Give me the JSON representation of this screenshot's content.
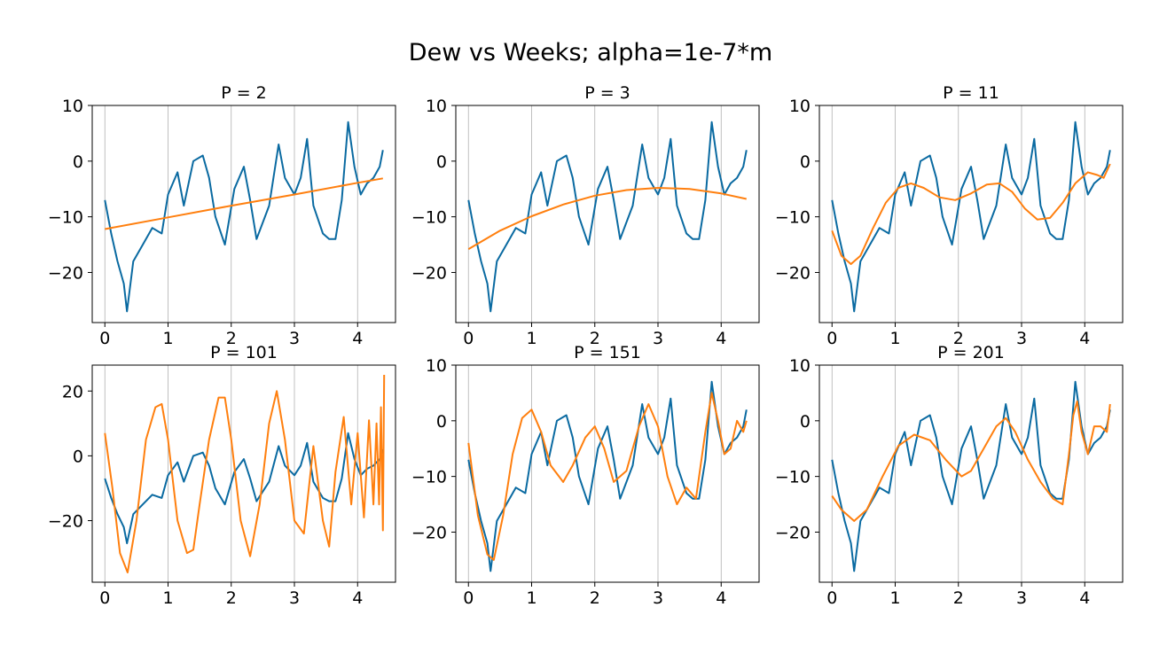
{
  "figure": {
    "title": "Dew vs Weeks; alpha=1e-7*m"
  },
  "colors": {
    "data": "#0a6aa1",
    "fit": "#ff7f0e",
    "grid": "#b0b0b0",
    "axes": "#000000"
  },
  "chart_data": [
    {
      "type": "line",
      "title": "P = 2",
      "xlim": [
        -0.2,
        4.6
      ],
      "ylim": [
        -29,
        10
      ],
      "xticks": [
        0,
        1,
        2,
        3,
        4
      ],
      "yticks": [
        -20,
        -10,
        0,
        10
      ],
      "ytick_labels": [
        "−20",
        "−10",
        "0",
        "10"
      ],
      "grid": "vertical",
      "series": [
        {
          "role": "data",
          "x": [
            0,
            0.1,
            0.2,
            0.3,
            0.35,
            0.45,
            0.6,
            0.75,
            0.9,
            1.0,
            1.15,
            1.25,
            1.4,
            1.55,
            1.65,
            1.75,
            1.9,
            2.05,
            2.2,
            2.3,
            2.4,
            2.6,
            2.75,
            2.85,
            3.0,
            3.1,
            3.2,
            3.3,
            3.45,
            3.55,
            3.65,
            3.75,
            3.85,
            3.95,
            4.05,
            4.15,
            4.25,
            4.35,
            4.4
          ],
          "y": [
            -7,
            -13,
            -18,
            -22,
            -27,
            -18,
            -15,
            -12,
            -13,
            -6,
            -2,
            -8,
            0,
            1,
            -3,
            -10,
            -15,
            -5,
            -1,
            -7,
            -14,
            -8,
            3,
            -3,
            -6,
            -3,
            4,
            -8,
            -13,
            -14,
            -14,
            -7,
            7,
            -1,
            -6,
            -4,
            -3,
            -1,
            2
          ]
        },
        {
          "role": "fit",
          "x": [
            0,
            1,
            2,
            3,
            4,
            4.4
          ],
          "y": [
            -12.2,
            -10.1,
            -8.0,
            -6.0,
            -3.9,
            -3.1
          ]
        }
      ]
    },
    {
      "type": "line",
      "title": "P = 3",
      "xlim": [
        -0.2,
        4.6
      ],
      "ylim": [
        -29,
        10
      ],
      "xticks": [
        0,
        1,
        2,
        3,
        4
      ],
      "yticks": [
        -20,
        -10,
        0,
        10
      ],
      "ytick_labels": [
        "−20",
        "−10",
        "0",
        "10"
      ],
      "grid": "vertical",
      "series": [
        {
          "role": "data",
          "x": [
            0,
            0.1,
            0.2,
            0.3,
            0.35,
            0.45,
            0.6,
            0.75,
            0.9,
            1.0,
            1.15,
            1.25,
            1.4,
            1.55,
            1.65,
            1.75,
            1.9,
            2.05,
            2.2,
            2.3,
            2.4,
            2.6,
            2.75,
            2.85,
            3.0,
            3.1,
            3.2,
            3.3,
            3.45,
            3.55,
            3.65,
            3.75,
            3.85,
            3.95,
            4.05,
            4.15,
            4.25,
            4.35,
            4.4
          ],
          "y": [
            -7,
            -13,
            -18,
            -22,
            -27,
            -18,
            -15,
            -12,
            -13,
            -6,
            -2,
            -8,
            0,
            1,
            -3,
            -10,
            -15,
            -5,
            -1,
            -7,
            -14,
            -8,
            3,
            -3,
            -6,
            -3,
            4,
            -8,
            -13,
            -14,
            -14,
            -7,
            7,
            -1,
            -6,
            -4,
            -3,
            -1,
            2
          ]
        },
        {
          "role": "fit",
          "x": [
            0,
            0.5,
            1,
            1.5,
            2,
            2.5,
            3,
            3.5,
            4,
            4.4
          ],
          "y": [
            -15.8,
            -12.5,
            -9.9,
            -7.8,
            -6.2,
            -5.2,
            -4.8,
            -5.0,
            -5.8,
            -6.8
          ]
        }
      ]
    },
    {
      "type": "line",
      "title": "P = 11",
      "xlim": [
        -0.2,
        4.6
      ],
      "ylim": [
        -29,
        10
      ],
      "xticks": [
        0,
        1,
        2,
        3,
        4
      ],
      "yticks": [
        -20,
        -10,
        0,
        10
      ],
      "ytick_labels": [
        "−20",
        "−10",
        "0",
        "10"
      ],
      "grid": "vertical",
      "series": [
        {
          "role": "data",
          "x": [
            0,
            0.1,
            0.2,
            0.3,
            0.35,
            0.45,
            0.6,
            0.75,
            0.9,
            1.0,
            1.15,
            1.25,
            1.4,
            1.55,
            1.65,
            1.75,
            1.9,
            2.05,
            2.2,
            2.3,
            2.4,
            2.6,
            2.75,
            2.85,
            3.0,
            3.1,
            3.2,
            3.3,
            3.45,
            3.55,
            3.65,
            3.75,
            3.85,
            3.95,
            4.05,
            4.15,
            4.25,
            4.35,
            4.4
          ],
          "y": [
            -7,
            -13,
            -18,
            -22,
            -27,
            -18,
            -15,
            -12,
            -13,
            -6,
            -2,
            -8,
            0,
            1,
            -3,
            -10,
            -15,
            -5,
            -1,
            -7,
            -14,
            -8,
            3,
            -3,
            -6,
            -3,
            4,
            -8,
            -13,
            -14,
            -14,
            -7,
            7,
            -1,
            -6,
            -4,
            -3,
            -1,
            2
          ]
        },
        {
          "role": "fit",
          "x": [
            0,
            0.15,
            0.3,
            0.45,
            0.65,
            0.85,
            1.05,
            1.25,
            1.45,
            1.7,
            1.95,
            2.2,
            2.45,
            2.65,
            2.85,
            3.05,
            3.25,
            3.45,
            3.65,
            3.85,
            4.05,
            4.2,
            4.3,
            4.4
          ],
          "y": [
            -12.5,
            -17,
            -18.5,
            -17,
            -12,
            -7.5,
            -4.8,
            -4.0,
            -4.8,
            -6.5,
            -7.0,
            -5.8,
            -4.2,
            -4.0,
            -5.5,
            -8.5,
            -10.5,
            -10.2,
            -7.5,
            -4.0,
            -2.0,
            -2.5,
            -3.0,
            -0.5
          ]
        }
      ]
    },
    {
      "type": "line",
      "title": "P = 101",
      "xlim": [
        -0.2,
        4.6
      ],
      "ylim": [
        -39,
        28
      ],
      "xticks": [
        0,
        1,
        2,
        3,
        4
      ],
      "yticks": [
        -20,
        0,
        20
      ],
      "ytick_labels": [
        "−20",
        "0",
        "20"
      ],
      "grid": "vertical",
      "series": [
        {
          "role": "data",
          "x": [
            0,
            0.1,
            0.2,
            0.3,
            0.35,
            0.45,
            0.6,
            0.75,
            0.9,
            1.0,
            1.15,
            1.25,
            1.4,
            1.55,
            1.65,
            1.75,
            1.9,
            2.05,
            2.2,
            2.3,
            2.4,
            2.6,
            2.75,
            2.85,
            3.0,
            3.1,
            3.2,
            3.3,
            3.45,
            3.55,
            3.65,
            3.75,
            3.85,
            3.95,
            4.05,
            4.15,
            4.25,
            4.35,
            4.4
          ],
          "y": [
            -7,
            -13,
            -18,
            -22,
            -27,
            -18,
            -15,
            -12,
            -13,
            -6,
            -2,
            -8,
            0,
            1,
            -3,
            -10,
            -15,
            -5,
            -1,
            -7,
            -14,
            -8,
            3,
            -3,
            -6,
            -3,
            4,
            -8,
            -13,
            -14,
            -14,
            -7,
            7,
            -1,
            -6,
            -4,
            -3,
            -1,
            2
          ]
        },
        {
          "role": "fit",
          "x": [
            0,
            0.12,
            0.24,
            0.36,
            0.5,
            0.65,
            0.8,
            0.9,
            1.0,
            1.15,
            1.3,
            1.4,
            1.5,
            1.65,
            1.8,
            1.9,
            2.0,
            2.15,
            2.3,
            2.45,
            2.6,
            2.72,
            2.85,
            3.0,
            3.15,
            3.3,
            3.45,
            3.55,
            3.65,
            3.78,
            3.9,
            4.0,
            4.1,
            4.18,
            4.25,
            4.3,
            4.34,
            4.37,
            4.4,
            4.42
          ],
          "y": [
            7,
            -10,
            -30,
            -36,
            -20,
            5,
            15,
            16,
            5,
            -20,
            -30,
            -29,
            -15,
            5,
            18,
            18,
            5,
            -20,
            -31,
            -15,
            10,
            20,
            5,
            -20,
            -24,
            3,
            -20,
            -28,
            -5,
            12,
            -15,
            7,
            -19,
            11,
            -15,
            10,
            -15,
            15,
            -23,
            25
          ]
        }
      ]
    },
    {
      "type": "line",
      "title": "P = 151",
      "xlim": [
        -0.2,
        4.6
      ],
      "ylim": [
        -29,
        10
      ],
      "xticks": [
        0,
        1,
        2,
        3,
        4
      ],
      "yticks": [
        -20,
        -10,
        0,
        10
      ],
      "ytick_labels": [
        "−20",
        "−10",
        "0",
        "10"
      ],
      "grid": "vertical",
      "series": [
        {
          "role": "data",
          "x": [
            0,
            0.1,
            0.2,
            0.3,
            0.35,
            0.45,
            0.6,
            0.75,
            0.9,
            1.0,
            1.15,
            1.25,
            1.4,
            1.55,
            1.65,
            1.75,
            1.9,
            2.05,
            2.2,
            2.3,
            2.4,
            2.6,
            2.75,
            2.85,
            3.0,
            3.1,
            3.2,
            3.3,
            3.45,
            3.55,
            3.65,
            3.75,
            3.85,
            3.95,
            4.05,
            4.15,
            4.25,
            4.35,
            4.4
          ],
          "y": [
            -7,
            -13,
            -18,
            -22,
            -27,
            -18,
            -15,
            -12,
            -13,
            -6,
            -2,
            -8,
            0,
            1,
            -3,
            -10,
            -15,
            -5,
            -1,
            -7,
            -14,
            -8,
            3,
            -3,
            -6,
            -3,
            4,
            -8,
            -13,
            -14,
            -14,
            -7,
            7,
            -1,
            -6,
            -4,
            -3,
            -1,
            2
          ]
        },
        {
          "role": "fit",
          "x": [
            0,
            0.15,
            0.3,
            0.4,
            0.55,
            0.7,
            0.85,
            1.0,
            1.15,
            1.3,
            1.5,
            1.65,
            1.85,
            2.0,
            2.15,
            2.3,
            2.5,
            2.7,
            2.85,
            3.0,
            3.15,
            3.3,
            3.45,
            3.6,
            3.75,
            3.85,
            3.95,
            4.05,
            4.15,
            4.25,
            4.35,
            4.4
          ],
          "y": [
            -4,
            -17,
            -24,
            -25,
            -17,
            -6,
            0.5,
            2,
            -2,
            -8,
            -11,
            -8,
            -3,
            -1,
            -5,
            -11,
            -9,
            -1,
            3,
            -1,
            -10,
            -15,
            -12,
            -14,
            -2,
            5,
            0,
            -6,
            -5,
            0,
            -2,
            0
          ]
        }
      ]
    },
    {
      "type": "line",
      "title": "P = 201",
      "xlim": [
        -0.2,
        4.6
      ],
      "ylim": [
        -29,
        10
      ],
      "xticks": [
        0,
        1,
        2,
        3,
        4
      ],
      "yticks": [
        -20,
        -10,
        0,
        10
      ],
      "ytick_labels": [
        "−20",
        "−10",
        "0",
        "10"
      ],
      "grid": "vertical",
      "series": [
        {
          "role": "data",
          "x": [
            0,
            0.1,
            0.2,
            0.3,
            0.35,
            0.45,
            0.6,
            0.75,
            0.9,
            1.0,
            1.15,
            1.25,
            1.4,
            1.55,
            1.65,
            1.75,
            1.9,
            2.05,
            2.2,
            2.3,
            2.4,
            2.6,
            2.75,
            2.85,
            3.0,
            3.1,
            3.2,
            3.3,
            3.45,
            3.55,
            3.65,
            3.75,
            3.85,
            3.95,
            4.05,
            4.15,
            4.25,
            4.35,
            4.4
          ],
          "y": [
            -7,
            -13,
            -18,
            -22,
            -27,
            -18,
            -15,
            -12,
            -13,
            -6,
            -2,
            -8,
            0,
            1,
            -3,
            -10,
            -15,
            -5,
            -1,
            -7,
            -14,
            -8,
            3,
            -3,
            -6,
            -3,
            4,
            -8,
            -13,
            -14,
            -14,
            -7,
            7,
            -1,
            -6,
            -4,
            -3,
            -1,
            2
          ]
        },
        {
          "role": "fit",
          "x": [
            0,
            0.15,
            0.35,
            0.55,
            0.8,
            1.05,
            1.3,
            1.55,
            1.8,
            2.05,
            2.2,
            2.4,
            2.6,
            2.75,
            2.9,
            3.1,
            3.3,
            3.5,
            3.65,
            3.75,
            3.82,
            3.88,
            3.95,
            4.05,
            4.15,
            4.25,
            4.35,
            4.4
          ],
          "y": [
            -13.5,
            -16,
            -18,
            -16,
            -10,
            -4.5,
            -2.5,
            -3.5,
            -7,
            -10,
            -9,
            -5,
            -1,
            0.5,
            -2,
            -7,
            -11,
            -14,
            -15,
            -6,
            1,
            3.5,
            -2,
            -6,
            -1,
            -1,
            -2,
            3
          ]
        }
      ]
    }
  ]
}
